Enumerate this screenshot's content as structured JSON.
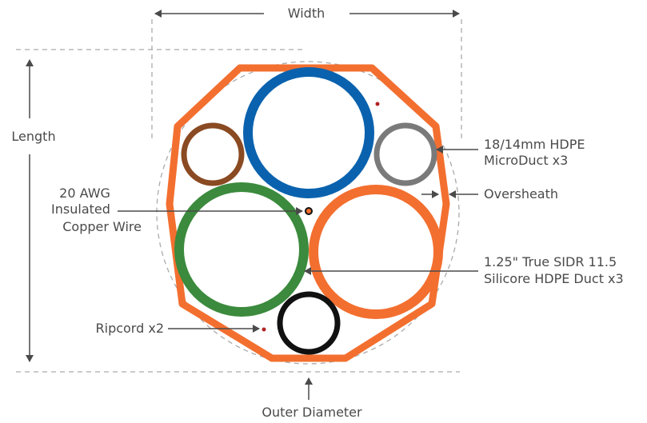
{
  "labels": {
    "width": "Width",
    "length": "Length",
    "outer_diameter": "Outer Diameter",
    "microduct": [
      "18/14mm HDPE",
      "MicroDuct x3"
    ],
    "oversheath": "Oversheath",
    "copper_wire": [
      "20 AWG",
      "Insulated",
      "Copper Wire"
    ],
    "silicore": [
      "1.25\" True SIDR 11.5",
      "Silicore HDPE Duct x3"
    ],
    "ripcord": "Ripcord x2"
  },
  "colors": {
    "oversheath": "#f36f2f",
    "blue_duct": "#0a62ae",
    "green_duct": "#3b8a3d",
    "orange_duct": "#f36f2f",
    "brown_microduct": "#8a4a22",
    "gray_microduct": "#7a7a7a",
    "black_microduct": "#111111",
    "ripcord": "#b22222",
    "lines": "#4a4a4a",
    "dashed": "#aaaaaa"
  }
}
